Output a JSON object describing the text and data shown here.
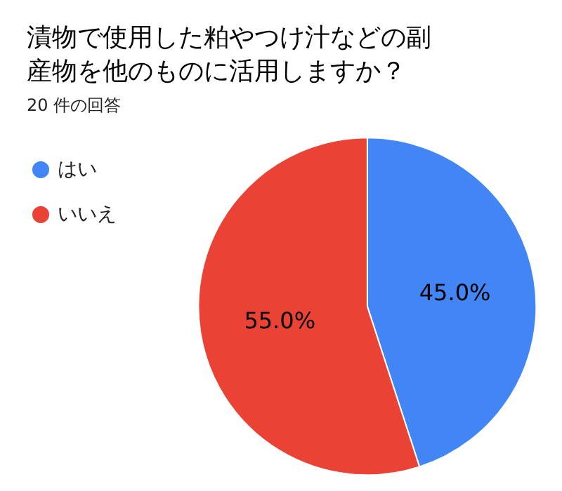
{
  "chart_data": {
    "type": "pie",
    "title": "漬物で使用した粕やつけ汁などの副産物を他のものに活用しますか？",
    "subtitle": "20 件の回答",
    "categories": [
      "はい",
      "いいえ"
    ],
    "values": [
      45,
      55
    ],
    "colors": [
      "#4285f4",
      "#ea4335"
    ],
    "value_labels": [
      "45.0%",
      "55.0%"
    ],
    "legend": "top left"
  }
}
